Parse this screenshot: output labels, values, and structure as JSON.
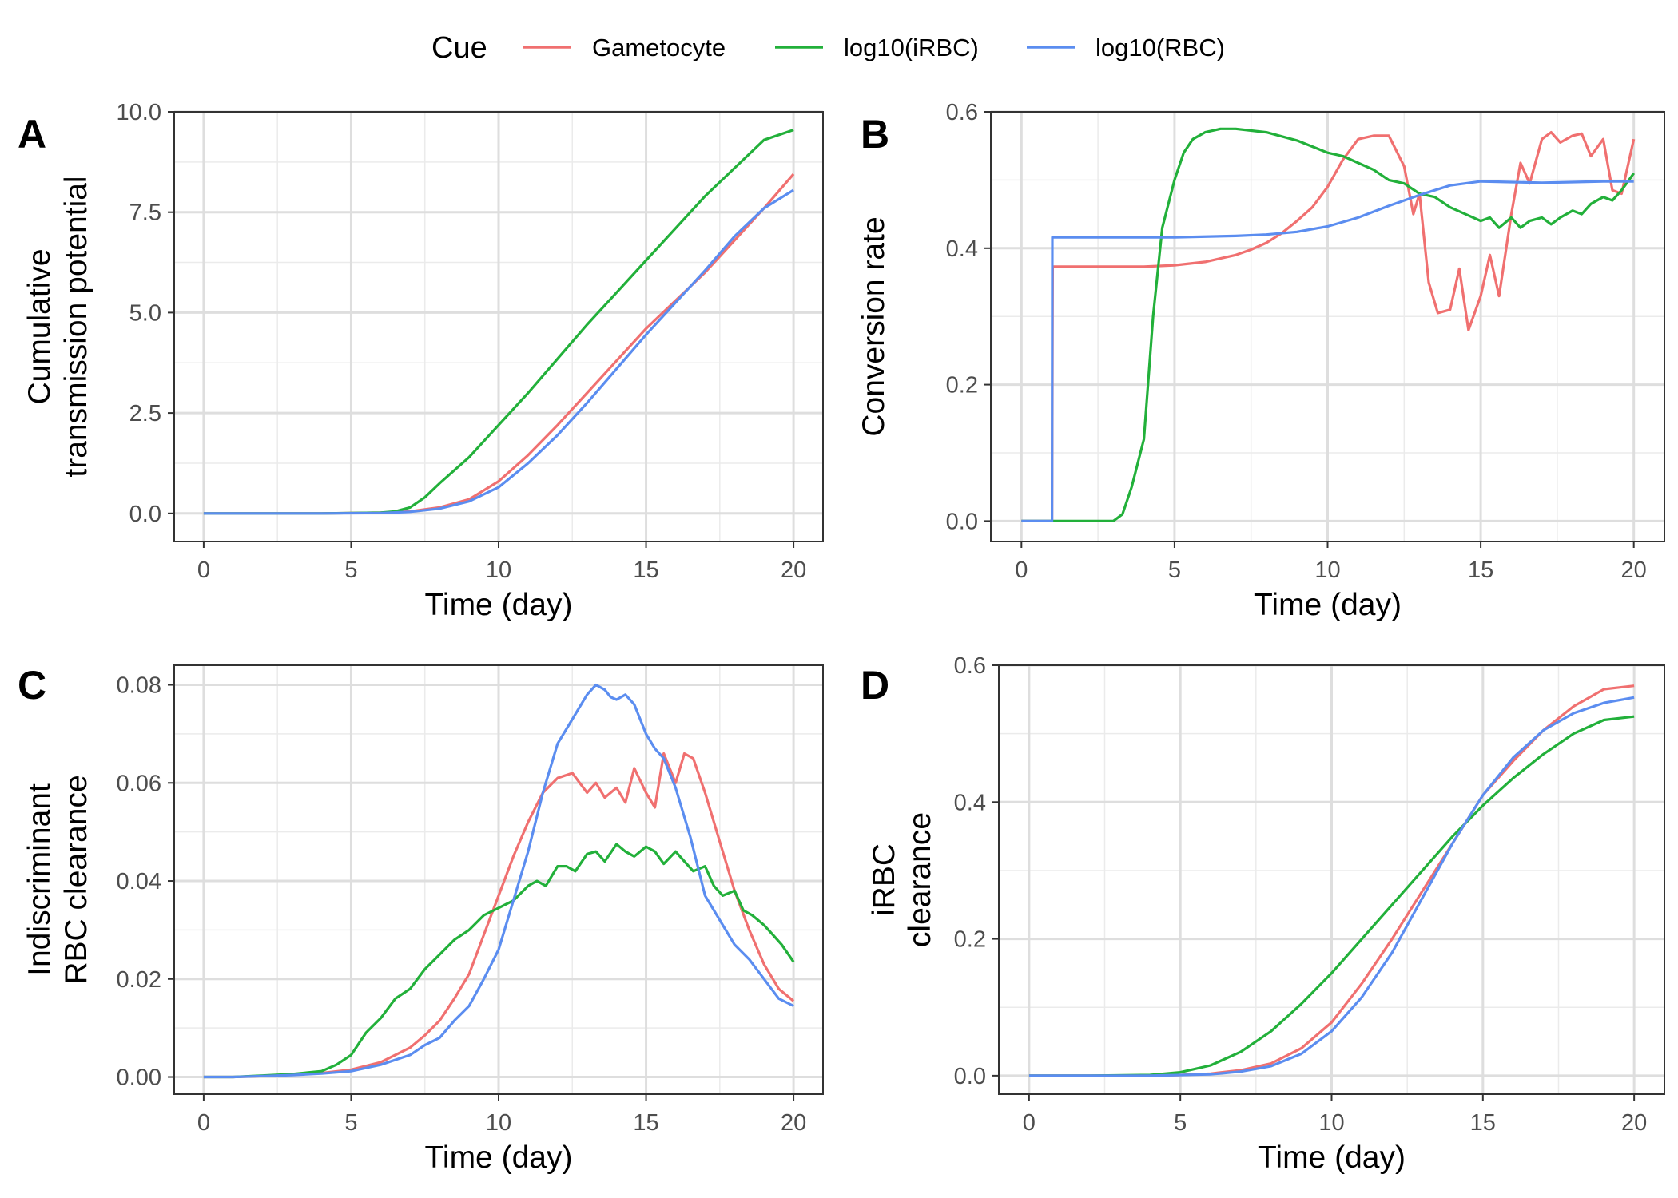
{
  "legend": {
    "title": "Cue",
    "placement": "top",
    "items": [
      {
        "label": "Gametocyte",
        "color": "#F07070"
      },
      {
        "label": "log10(iRBC)",
        "color": "#22B03A"
      },
      {
        "label": "log10(RBC)",
        "color": "#5B8DF0"
      }
    ]
  },
  "chart_data": [
    {
      "panel": "A",
      "type": "line",
      "xlabel": "Time (day)",
      "ylabel": [
        "Cumulative",
        "transmission potential"
      ],
      "xlim": [
        -1,
        21
      ],
      "ylim": [
        -0.7,
        10.0
      ],
      "xticks": [
        "0",
        "5",
        "10",
        "15",
        "20"
      ],
      "yticks": [
        "0.0",
        "2.5",
        "5.0",
        "7.5",
        "10.0"
      ],
      "grid": true,
      "series": [
        {
          "name": "Gametocyte",
          "x": [
            0,
            2,
            4,
            6,
            7,
            8,
            9,
            10,
            11,
            12,
            13,
            14,
            15,
            16,
            17,
            18,
            19,
            20
          ],
          "y": [
            0,
            0,
            0,
            0.02,
            0.05,
            0.15,
            0.35,
            0.8,
            1.45,
            2.2,
            3.0,
            3.8,
            4.6,
            5.3,
            6.0,
            6.8,
            7.6,
            8.45
          ]
        },
        {
          "name": "log10(iRBC)",
          "x": [
            0,
            2,
            4,
            6,
            6.5,
            7,
            7.5,
            8,
            9,
            10,
            11,
            12,
            13,
            14,
            15,
            16,
            17,
            18,
            19,
            20
          ],
          "y": [
            0,
            0,
            0,
            0.02,
            0.05,
            0.15,
            0.4,
            0.75,
            1.4,
            2.2,
            3.0,
            3.85,
            4.7,
            5.5,
            6.3,
            7.1,
            7.9,
            8.6,
            9.3,
            9.55
          ]
        },
        {
          "name": "log10(RBC)",
          "x": [
            0,
            2,
            4,
            6,
            7,
            8,
            9,
            10,
            11,
            12,
            13,
            14,
            15,
            16,
            17,
            18,
            19,
            20
          ],
          "y": [
            0,
            0,
            0,
            0.01,
            0.04,
            0.12,
            0.3,
            0.65,
            1.25,
            1.95,
            2.75,
            3.6,
            4.45,
            5.25,
            6.05,
            6.9,
            7.6,
            8.05
          ]
        }
      ]
    },
    {
      "panel": "B",
      "type": "line",
      "xlabel": "Time (day)",
      "ylabel": [
        "Conversion rate"
      ],
      "xlim": [
        -1,
        21
      ],
      "ylim": [
        -0.03,
        0.6
      ],
      "xticks": [
        "0",
        "5",
        "10",
        "15",
        "20"
      ],
      "yticks": [
        "0.0",
        "0.2",
        "0.4",
        "0.6"
      ],
      "grid": true,
      "series": [
        {
          "name": "Gametocyte",
          "x": [
            0,
            1,
            1.02,
            3,
            4,
            5,
            6,
            6.5,
            7,
            7.5,
            8,
            8.5,
            9,
            9.5,
            10,
            10.5,
            11,
            11.5,
            12,
            12.5,
            12.8,
            13,
            13.3,
            13.6,
            14,
            14.3,
            14.6,
            15,
            15.3,
            15.6,
            16,
            16.3,
            16.6,
            17,
            17.3,
            17.6,
            18,
            18.3,
            18.6,
            19,
            19.3,
            19.6,
            20
          ],
          "y": [
            0,
            0,
            0.373,
            0.373,
            0.373,
            0.375,
            0.38,
            0.385,
            0.39,
            0.398,
            0.408,
            0.422,
            0.44,
            0.46,
            0.49,
            0.53,
            0.56,
            0.565,
            0.565,
            0.52,
            0.45,
            0.48,
            0.35,
            0.305,
            0.31,
            0.37,
            0.28,
            0.33,
            0.39,
            0.33,
            0.45,
            0.525,
            0.495,
            0.56,
            0.57,
            0.555,
            0.565,
            0.568,
            0.535,
            0.56,
            0.485,
            0.48,
            0.56
          ]
        },
        {
          "name": "log10(iRBC)",
          "x": [
            0,
            1,
            2,
            3,
            3.3,
            3.6,
            4,
            4.3,
            4.6,
            5,
            5.3,
            5.6,
            6,
            6.5,
            7,
            8,
            9,
            10,
            10.5,
            11,
            11.5,
            12,
            12.5,
            13,
            13.5,
            14,
            14.5,
            15,
            15.3,
            15.6,
            16,
            16.3,
            16.6,
            17,
            17.3,
            17.6,
            18,
            18.3,
            18.6,
            19,
            19.3,
            19.6,
            20
          ],
          "y": [
            0,
            0,
            0,
            0,
            0.01,
            0.05,
            0.12,
            0.3,
            0.43,
            0.5,
            0.54,
            0.56,
            0.57,
            0.575,
            0.575,
            0.57,
            0.558,
            0.54,
            0.535,
            0.525,
            0.515,
            0.5,
            0.495,
            0.48,
            0.475,
            0.46,
            0.45,
            0.44,
            0.445,
            0.43,
            0.445,
            0.43,
            0.44,
            0.445,
            0.435,
            0.445,
            0.455,
            0.45,
            0.465,
            0.475,
            0.47,
            0.485,
            0.51
          ]
        },
        {
          "name": "log10(RBC)",
          "x": [
            0,
            1,
            1.01,
            3,
            5,
            7,
            8,
            9,
            10,
            11,
            12,
            13,
            14,
            15,
            16,
            17,
            18,
            19,
            20
          ],
          "y": [
            0,
            0,
            0.416,
            0.416,
            0.416,
            0.418,
            0.42,
            0.424,
            0.432,
            0.445,
            0.462,
            0.478,
            0.492,
            0.498,
            0.497,
            0.496,
            0.497,
            0.498,
            0.498
          ]
        }
      ]
    },
    {
      "panel": "C",
      "type": "line",
      "xlabel": "Time (day)",
      "ylabel": [
        "Indiscriminant",
        "RBC clearance"
      ],
      "xlim": [
        -1,
        21
      ],
      "ylim": [
        -0.0035,
        0.084
      ],
      "xticks": [
        "0",
        "5",
        "10",
        "15",
        "20"
      ],
      "yticks": [
        "0.00",
        "0.02",
        "0.04",
        "0.06",
        "0.08"
      ],
      "grid": true,
      "series": [
        {
          "name": "Gametocyte",
          "x": [
            0,
            1,
            2,
            3,
            4,
            5,
            6,
            7,
            7.5,
            8,
            8.5,
            9,
            9.5,
            10,
            10.5,
            11,
            11.5,
            12,
            12.5,
            13,
            13.3,
            13.6,
            14,
            14.3,
            14.6,
            15,
            15.3,
            15.6,
            16,
            16.3,
            16.6,
            17,
            17.5,
            18,
            18.5,
            19,
            19.5,
            20
          ],
          "y": [
            0,
            0,
            0.0002,
            0.0005,
            0.0008,
            0.0015,
            0.003,
            0.006,
            0.0085,
            0.0115,
            0.016,
            0.021,
            0.029,
            0.037,
            0.045,
            0.052,
            0.058,
            0.061,
            0.062,
            0.058,
            0.06,
            0.057,
            0.059,
            0.056,
            0.063,
            0.058,
            0.055,
            0.066,
            0.06,
            0.066,
            0.065,
            0.058,
            0.048,
            0.038,
            0.03,
            0.023,
            0.018,
            0.0155
          ]
        },
        {
          "name": "log10(iRBC)",
          "x": [
            0,
            1,
            2,
            3,
            3.5,
            4,
            4.5,
            5,
            5.5,
            6,
            6.5,
            7,
            7.5,
            8,
            8.5,
            9,
            9.5,
            10,
            10.5,
            11,
            11.3,
            11.6,
            12,
            12.3,
            12.6,
            13,
            13.3,
            13.6,
            14,
            14.3,
            14.6,
            15,
            15.3,
            15.6,
            16,
            16.3,
            16.6,
            17,
            17.3,
            17.6,
            18,
            18.3,
            18.6,
            19,
            19.3,
            19.6,
            20
          ],
          "y": [
            0,
            0,
            0.0003,
            0.0006,
            0.0009,
            0.0012,
            0.0025,
            0.0045,
            0.009,
            0.012,
            0.016,
            0.018,
            0.022,
            0.025,
            0.028,
            0.03,
            0.033,
            0.0345,
            0.036,
            0.039,
            0.04,
            0.039,
            0.043,
            0.043,
            0.042,
            0.0455,
            0.046,
            0.044,
            0.0475,
            0.046,
            0.045,
            0.047,
            0.046,
            0.0435,
            0.046,
            0.044,
            0.042,
            0.043,
            0.039,
            0.037,
            0.038,
            0.034,
            0.033,
            0.031,
            0.029,
            0.027,
            0.0235
          ]
        },
        {
          "name": "log10(RBC)",
          "x": [
            0,
            1,
            2,
            3,
            4,
            5,
            6,
            7,
            7.5,
            8,
            8.5,
            9,
            9.5,
            10,
            10.5,
            11,
            11.5,
            12,
            12.5,
            13,
            13.3,
            13.6,
            13.8,
            14,
            14.3,
            14.6,
            15,
            15.3,
            15.6,
            16,
            16.5,
            17,
            17.5,
            18,
            18.5,
            19,
            19.5,
            20
          ],
          "y": [
            0,
            0,
            0.0002,
            0.0004,
            0.0007,
            0.0012,
            0.0025,
            0.0045,
            0.0065,
            0.008,
            0.0115,
            0.0145,
            0.02,
            0.026,
            0.036,
            0.046,
            0.058,
            0.068,
            0.073,
            0.078,
            0.08,
            0.079,
            0.0775,
            0.077,
            0.078,
            0.076,
            0.07,
            0.067,
            0.065,
            0.059,
            0.049,
            0.037,
            0.032,
            0.027,
            0.024,
            0.02,
            0.016,
            0.0145
          ]
        }
      ]
    },
    {
      "panel": "D",
      "type": "line",
      "xlabel": "Time (day)",
      "ylabel": [
        "iRBC",
        "clearance"
      ],
      "xlim": [
        -1,
        21
      ],
      "ylim": [
        -0.027,
        0.6
      ],
      "xticks": [
        "0",
        "5",
        "10",
        "15",
        "20"
      ],
      "yticks": [
        "0.0",
        "0.2",
        "0.4",
        "0.6"
      ],
      "grid": true,
      "series": [
        {
          "name": "Gametocyte",
          "x": [
            0,
            2,
            4,
            5,
            6,
            7,
            8,
            9,
            10,
            11,
            12,
            13,
            14,
            15,
            16,
            17,
            18,
            19,
            20
          ],
          "y": [
            0,
            0,
            0,
            0.001,
            0.003,
            0.008,
            0.018,
            0.04,
            0.078,
            0.135,
            0.2,
            0.27,
            0.34,
            0.41,
            0.46,
            0.505,
            0.54,
            0.565,
            0.57
          ]
        },
        {
          "name": "log10(iRBC)",
          "x": [
            0,
            2,
            4,
            5,
            6,
            7,
            8,
            9,
            10,
            11,
            12,
            13,
            14,
            15,
            16,
            17,
            18,
            19,
            20
          ],
          "y": [
            0,
            0,
            0.001,
            0.005,
            0.015,
            0.035,
            0.065,
            0.105,
            0.15,
            0.2,
            0.25,
            0.3,
            0.35,
            0.395,
            0.435,
            0.47,
            0.5,
            0.52,
            0.525
          ]
        },
        {
          "name": "log10(RBC)",
          "x": [
            0,
            2,
            4,
            5,
            6,
            7,
            8,
            9,
            10,
            11,
            12,
            13,
            14,
            15,
            16,
            17,
            18,
            19,
            20
          ],
          "y": [
            0,
            0,
            0,
            0.001,
            0.002,
            0.006,
            0.014,
            0.032,
            0.065,
            0.115,
            0.18,
            0.26,
            0.34,
            0.41,
            0.465,
            0.505,
            0.53,
            0.545,
            0.553
          ]
        }
      ]
    }
  ],
  "panels": [
    {
      "tag": "A"
    },
    {
      "tag": "B"
    },
    {
      "tag": "C"
    },
    {
      "tag": "D"
    }
  ]
}
